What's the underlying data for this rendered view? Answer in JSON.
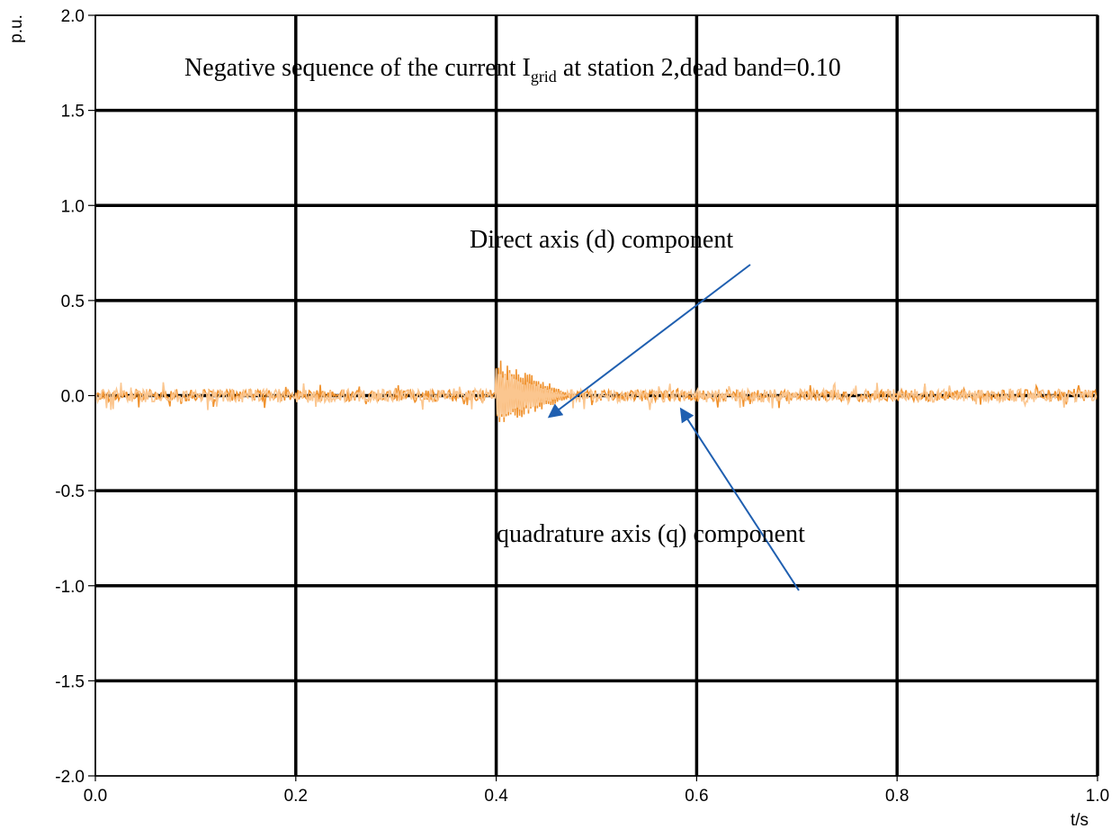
{
  "chart_data": {
    "type": "line",
    "title": "Negative  sequence of the current I",
    "title_sub": "grid",
    "title_tail": " at station 2,dead band=0.10",
    "xlabel": "t/s",
    "ylabel": "p.u.",
    "xlim": [
      0.0,
      1.0
    ],
    "ylim": [
      -2.0,
      2.0
    ],
    "x_ticks": [
      0.0,
      0.2,
      0.4,
      0.6,
      0.8,
      1.0
    ],
    "x_tick_labels": [
      "0.0",
      "0.2",
      "0.4",
      "0.6",
      "0.8",
      "1.0"
    ],
    "y_ticks": [
      2.0,
      1.5,
      1.0,
      0.5,
      0.0,
      -0.5,
      -1.0,
      -1.5,
      -2.0
    ],
    "y_tick_labels": [
      "2.0",
      "1.5",
      "1.0",
      "0.5",
      "0.0",
      "-0.5",
      "-1.0",
      "-1.5",
      "-2.0"
    ],
    "grid": true,
    "series": [
      {
        "name": "Direct axis (d) component",
        "color": "#f0922e",
        "noise_amplitude": 0.03,
        "disturbance": {
          "t_start": 0.4,
          "t_end": 0.48,
          "peak": 0.2,
          "trough": -0.17
        }
      },
      {
        "name": "quadrature axis (q) component",
        "color": "#fbc68f",
        "noise_amplitude": 0.035,
        "disturbance": {
          "t_start": 0.4,
          "t_end": 0.47,
          "peak": 0.15,
          "trough": -0.15
        }
      }
    ],
    "annotations": [
      {
        "text": "Direct axis (d) component",
        "target_series": 0,
        "arrow_color": "#1f5fb0"
      },
      {
        "text": "quadrature axis (q) component",
        "target_series": 1,
        "arrow_color": "#1f5fb0"
      }
    ]
  }
}
